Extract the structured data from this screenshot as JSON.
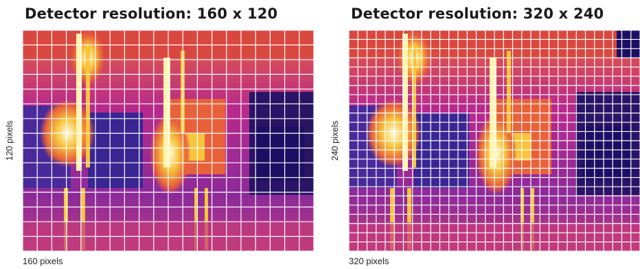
{
  "panels": [
    {
      "title": "Detector resolution: 160 x 120",
      "x_label": "160 pixels",
      "y_label": "120 pixels",
      "grid_columns": 20,
      "grid_rows": 15
    },
    {
      "title": "Detector resolution: 320 x 240",
      "x_label": "320 pixels",
      "y_label": "240 pixels",
      "grid_columns": 32,
      "grid_rows": 24
    }
  ],
  "colors": {
    "thermal_cold": "#1c0f63",
    "thermal_cool": "#5a2fa6",
    "thermal_mid": "#b82a8c",
    "thermal_warm": "#e8613a",
    "thermal_hot": "#f7c53c",
    "thermal_hottest": "#fffbe3",
    "grid_line": "#ffffff"
  }
}
